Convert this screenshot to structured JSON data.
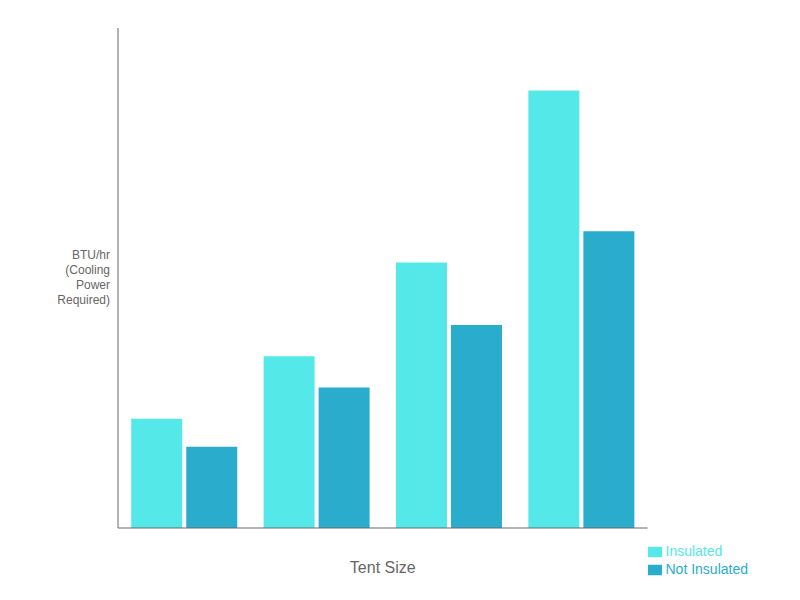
{
  "chart_data": {
    "type": "bar",
    "xlabel": "Tent Size",
    "ylabel": "BTU/hr\n(Cooling\nPower\nRequired)",
    "categories": [
      null,
      null,
      null,
      null
    ],
    "series": [
      {
        "name": "Insulated",
        "color": "#55E8E8",
        "values": [
          3500,
          5500,
          8500,
          14000
        ]
      },
      {
        "name": "Not Insulated",
        "color": "#2AACCC",
        "values": [
          2600,
          4500,
          6500,
          9500
        ]
      }
    ],
    "ylim": [
      0,
      16000
    ],
    "yticks": [],
    "tick_labels": false,
    "legend": "lower right"
  }
}
